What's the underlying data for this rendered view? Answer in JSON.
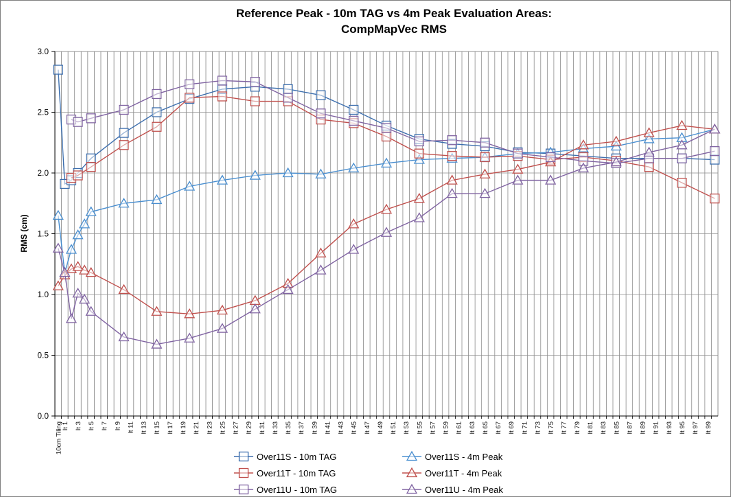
{
  "chart_data": {
    "type": "line",
    "title_line1": "Reference Peak - 10m TAG vs 4m Peak Evaluation Areas:",
    "title_line2": "CompMapVec RMS",
    "xlabel": "",
    "ylabel": "RMS (cm)",
    "ylim": [
      0.0,
      3.0
    ],
    "yticks": [
      "0.0",
      "0.5",
      "1.0",
      "1.5",
      "2.0",
      "2.5",
      "3.0"
    ],
    "grid": true,
    "legend_position": "bottom",
    "categories": [
      "10cm Tiling",
      "It 1",
      "It 2",
      "It 3",
      "It 4",
      "It 5",
      "It 6",
      "It 7",
      "It 8",
      "It 9",
      "It 10",
      "It 11",
      "It 12",
      "It 13",
      "It 14",
      "It 15",
      "It 16",
      "It 17",
      "It 18",
      "It 19",
      "It 20",
      "It 21",
      "It 22",
      "It 23",
      "It 24",
      "It 25",
      "It 26",
      "It 27",
      "It 28",
      "It 29",
      "It 30",
      "It 31",
      "It 32",
      "It 33",
      "It 34",
      "It 35",
      "It 36",
      "It 37",
      "It 38",
      "It 39",
      "It 40",
      "It 41",
      "It 42",
      "It 43",
      "It 44",
      "It 45",
      "It 46",
      "It 47",
      "It 48",
      "It 49",
      "It 50",
      "It 51",
      "It 52",
      "It 53",
      "It 54",
      "It 55",
      "It 56",
      "It 57",
      "It 58",
      "It 59",
      "It 60",
      "It 61",
      "It 62",
      "It 63",
      "It 64",
      "It 65",
      "It 66",
      "It 67",
      "It 68",
      "It 69",
      "It 70",
      "It 71",
      "It 72",
      "It 73",
      "It 74",
      "It 75",
      "It 76",
      "It 77",
      "It 78",
      "It 79",
      "It 80",
      "It 81",
      "It 82",
      "It 83",
      "It 84",
      "It 85",
      "It 86",
      "It 87",
      "It 88",
      "It 89",
      "It 90",
      "It 91",
      "It 92",
      "It 93",
      "It 94",
      "It 95",
      "It 96",
      "It 97",
      "It 98",
      "It 99",
      "It 100"
    ],
    "visible_tick_labels": [
      "10cm Tiling",
      "It 1",
      "It 3",
      "It 5",
      "It 7",
      "It 9",
      "It 11",
      "It 13",
      "It 15",
      "It 17",
      "It 19",
      "It 21",
      "It 23",
      "It 25",
      "It 27",
      "It 29",
      "It 31",
      "It 33",
      "It 35",
      "It 37",
      "It 39",
      "It 41",
      "It 43",
      "It 45",
      "It 47",
      "It 49",
      "It 51",
      "It 53",
      "It 55",
      "It 57",
      "It 59",
      "It 61",
      "It 63",
      "It 65",
      "It 67",
      "It 69",
      "It 71",
      "It 73",
      "It 75",
      "It 77",
      "It 79",
      "It 81",
      "It 83",
      "It 85",
      "It 87",
      "It 89",
      "It 91",
      "It 93",
      "It 95",
      "It 97",
      "It 99"
    ],
    "series": [
      {
        "name": "Over11S - 10m TAG",
        "color": "#3d6fae",
        "marker": "square",
        "points": [
          [
            0,
            2.85
          ],
          [
            1,
            1.91
          ],
          [
            2,
            1.94
          ],
          [
            3,
            2.0
          ],
          [
            5,
            2.12
          ],
          [
            10,
            2.33
          ],
          [
            15,
            2.5
          ],
          [
            20,
            2.61
          ],
          [
            25,
            2.69
          ],
          [
            30,
            2.71
          ],
          [
            35,
            2.69
          ],
          [
            40,
            2.64
          ],
          [
            45,
            2.52
          ],
          [
            50,
            2.39
          ],
          [
            55,
            2.28
          ],
          [
            60,
            2.24
          ],
          [
            65,
            2.22
          ],
          [
            70,
            2.17
          ],
          [
            75,
            2.16
          ],
          [
            80,
            2.14
          ],
          [
            85,
            2.12
          ],
          [
            90,
            2.12
          ],
          [
            95,
            2.12
          ],
          [
            100,
            2.11
          ]
        ]
      },
      {
        "name": "Over11S - 4m Peak",
        "color": "#4a8fd0",
        "marker": "triangle",
        "points": [
          [
            0,
            1.65
          ],
          [
            1,
            1.18
          ],
          [
            2,
            1.37
          ],
          [
            3,
            1.49
          ],
          [
            4,
            1.58
          ],
          [
            5,
            1.68
          ],
          [
            10,
            1.75
          ],
          [
            15,
            1.78
          ],
          [
            20,
            1.89
          ],
          [
            25,
            1.94
          ],
          [
            30,
            1.98
          ],
          [
            35,
            2.0
          ],
          [
            40,
            1.99
          ],
          [
            45,
            2.04
          ],
          [
            50,
            2.08
          ],
          [
            55,
            2.11
          ],
          [
            60,
            2.12
          ],
          [
            65,
            2.13
          ],
          [
            70,
            2.16
          ],
          [
            75,
            2.17
          ],
          [
            80,
            2.2
          ],
          [
            85,
            2.22
          ],
          [
            90,
            2.28
          ],
          [
            95,
            2.29
          ],
          [
            100,
            2.36
          ]
        ]
      },
      {
        "name": "Over11T - 10m TAG",
        "color": "#c0504d",
        "marker": "square",
        "points": [
          [
            2,
            1.96
          ],
          [
            3,
            1.98
          ],
          [
            5,
            2.05
          ],
          [
            10,
            2.23
          ],
          [
            15,
            2.38
          ],
          [
            20,
            2.62
          ],
          [
            25,
            2.63
          ],
          [
            30,
            2.59
          ],
          [
            35,
            2.59
          ],
          [
            40,
            2.44
          ],
          [
            45,
            2.41
          ],
          [
            50,
            2.3
          ],
          [
            55,
            2.16
          ],
          [
            60,
            2.14
          ],
          [
            65,
            2.13
          ],
          [
            70,
            2.14
          ],
          [
            75,
            2.11
          ],
          [
            80,
            2.13
          ],
          [
            85,
            2.1
          ],
          [
            90,
            2.05
          ],
          [
            95,
            1.92
          ],
          [
            100,
            1.79
          ]
        ]
      },
      {
        "name": "Over11T - 4m Peak",
        "color": "#c0504d",
        "marker": "triangle",
        "points": [
          [
            0,
            1.07
          ],
          [
            1,
            1.16
          ],
          [
            2,
            1.21
          ],
          [
            3,
            1.23
          ],
          [
            4,
            1.2
          ],
          [
            5,
            1.18
          ],
          [
            10,
            1.04
          ],
          [
            15,
            0.86
          ],
          [
            20,
            0.84
          ],
          [
            25,
            0.87
          ],
          [
            30,
            0.95
          ],
          [
            35,
            1.09
          ],
          [
            40,
            1.34
          ],
          [
            45,
            1.58
          ],
          [
            50,
            1.7
          ],
          [
            55,
            1.79
          ],
          [
            60,
            1.94
          ],
          [
            65,
            1.99
          ],
          [
            70,
            2.03
          ],
          [
            75,
            2.09
          ],
          [
            80,
            2.23
          ],
          [
            85,
            2.26
          ],
          [
            90,
            2.33
          ],
          [
            95,
            2.39
          ],
          [
            100,
            2.36
          ]
        ]
      },
      {
        "name": "Over11U - 10m TAG",
        "color": "#8064a2",
        "marker": "square",
        "points": [
          [
            2,
            2.44
          ],
          [
            3,
            2.42
          ],
          [
            5,
            2.45
          ],
          [
            10,
            2.52
          ],
          [
            15,
            2.65
          ],
          [
            20,
            2.73
          ],
          [
            25,
            2.76
          ],
          [
            30,
            2.75
          ],
          [
            35,
            2.62
          ],
          [
            40,
            2.49
          ],
          [
            45,
            2.43
          ],
          [
            50,
            2.37
          ],
          [
            55,
            2.26
          ],
          [
            60,
            2.27
          ],
          [
            65,
            2.25
          ],
          [
            70,
            2.16
          ],
          [
            75,
            2.13
          ],
          [
            80,
            2.1
          ],
          [
            85,
            2.08
          ],
          [
            90,
            2.12
          ],
          [
            95,
            2.12
          ],
          [
            100,
            2.18
          ]
        ]
      },
      {
        "name": "Over11U - 4m Peak",
        "color": "#8064a2",
        "marker": "triangle",
        "points": [
          [
            0,
            1.38
          ],
          [
            1,
            1.18
          ],
          [
            2,
            0.8
          ],
          [
            3,
            1.01
          ],
          [
            4,
            0.96
          ],
          [
            5,
            0.86
          ],
          [
            10,
            0.65
          ],
          [
            15,
            0.59
          ],
          [
            20,
            0.64
          ],
          [
            25,
            0.72
          ],
          [
            30,
            0.88
          ],
          [
            35,
            1.04
          ],
          [
            40,
            1.2
          ],
          [
            45,
            1.37
          ],
          [
            50,
            1.51
          ],
          [
            55,
            1.63
          ],
          [
            60,
            1.83
          ],
          [
            65,
            1.83
          ],
          [
            70,
            1.94
          ],
          [
            75,
            1.94
          ],
          [
            80,
            2.04
          ],
          [
            85,
            2.09
          ],
          [
            90,
            2.17
          ],
          [
            95,
            2.23
          ],
          [
            100,
            2.36
          ]
        ]
      }
    ]
  }
}
